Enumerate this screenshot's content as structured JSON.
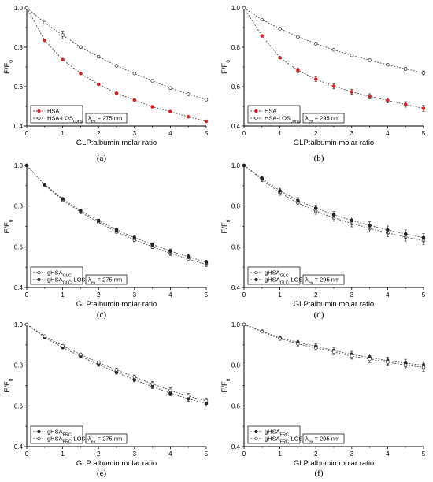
{
  "figure": {
    "x_axis_title": "GLP:albumin molar ratio",
    "y_axis_title_main": "F/F",
    "y_axis_title_sub": "0",
    "x_ticks": [
      0,
      1,
      2,
      3,
      4,
      5
    ]
  },
  "chart_data": [
    {
      "panel": "(a)",
      "type": "line",
      "xlim": [
        0,
        5
      ],
      "ylim": [
        0.4,
        1.0
      ],
      "y_ticks": [
        "0.4",
        "0.6",
        "0.8",
        "1.0"
      ],
      "y_tick_values": [
        0.4,
        0.6,
        0.8,
        1.0
      ],
      "legend_placement": "bottom-left",
      "lambda": {
        "main": "λ",
        "sub": "ex",
        "rest": " = 275 nm"
      },
      "series": [
        {
          "name": "HSA",
          "sub": "",
          "suffix": "",
          "sub2": "",
          "marker": "filled",
          "color": "#d62020",
          "x": [
            0,
            0.5,
            1,
            1.5,
            2,
            2.5,
            3,
            3.5,
            4,
            4.5,
            5
          ],
          "y": [
            1.0,
            0.835,
            0.737,
            0.667,
            0.612,
            0.567,
            0.532,
            0.498,
            0.473,
            0.447,
            0.424
          ],
          "err": [
            0,
            0.003,
            0.003,
            0.003,
            0.003,
            0.003,
            0.003,
            0.003,
            0.003,
            0.003,
            0.003
          ]
        },
        {
          "name": "HSA-LOS",
          "sub": "",
          "suffix": "",
          "sub2": "const",
          "marker": "open",
          "color": "#555555",
          "x": [
            0,
            0.5,
            1,
            1.5,
            2,
            2.5,
            3,
            3.5,
            4,
            4.5,
            5
          ],
          "y": [
            1.0,
            0.925,
            0.862,
            0.801,
            0.752,
            0.706,
            0.667,
            0.63,
            0.593,
            0.562,
            0.534
          ],
          "err": [
            0,
            0.005,
            0.02,
            0.006,
            0.005,
            0.005,
            0.005,
            0.005,
            0.005,
            0.005,
            0.005
          ]
        }
      ]
    },
    {
      "panel": "(b)",
      "type": "line",
      "xlim": [
        0,
        5
      ],
      "ylim": [
        0.4,
        1.0
      ],
      "y_ticks": [
        "0.4",
        "0.6",
        "0.8",
        "1.0"
      ],
      "y_tick_values": [
        0.4,
        0.6,
        0.8,
        1.0
      ],
      "legend_placement": "bottom-left",
      "lambda": {
        "main": "λ",
        "sub": "ex",
        "rest": " = 295 nm"
      },
      "series": [
        {
          "name": "HSA",
          "sub": "",
          "suffix": "",
          "sub2": "",
          "marker": "filled",
          "color": "#d62020",
          "x": [
            0,
            0.5,
            1,
            1.5,
            2,
            2.5,
            3,
            3.5,
            4,
            4.5,
            5
          ],
          "y": [
            1.0,
            0.858,
            0.747,
            0.683,
            0.638,
            0.602,
            0.574,
            0.551,
            0.53,
            0.51,
            0.49
          ],
          "err": [
            0,
            0.005,
            0.005,
            0.012,
            0.012,
            0.013,
            0.013,
            0.013,
            0.013,
            0.014,
            0.015
          ]
        },
        {
          "name": "HSA-LOS",
          "sub": "",
          "suffix": "",
          "sub2": "const",
          "marker": "open",
          "color": "#555555",
          "x": [
            0,
            0.5,
            1,
            1.5,
            2,
            2.5,
            3,
            3.5,
            4,
            4.5,
            5
          ],
          "y": [
            1.0,
            0.94,
            0.894,
            0.853,
            0.818,
            0.787,
            0.759,
            0.734,
            0.711,
            0.69,
            0.67
          ],
          "err": [
            0,
            0.004,
            0.004,
            0.004,
            0.005,
            0.005,
            0.005,
            0.006,
            0.006,
            0.007,
            0.01
          ]
        }
      ]
    },
    {
      "panel": "(c)",
      "type": "line",
      "xlim": [
        0,
        5
      ],
      "ylim": [
        0.4,
        1.0
      ],
      "y_ticks": [
        "0.4",
        "0.6",
        "0.8",
        "1.0"
      ],
      "y_tick_values": [
        0.4,
        0.6,
        0.8,
        1.0
      ],
      "legend_placement": "bottom-left",
      "lambda": {
        "main": "λ",
        "sub": "ex",
        "rest": " = 275 nm"
      },
      "series": [
        {
          "name": "gHSA",
          "sub": "GLC",
          "suffix": "",
          "sub2": "",
          "marker": "open",
          "color": "#555555",
          "x": [
            0,
            0.5,
            1,
            1.5,
            2,
            2.5,
            3,
            3.5,
            4,
            4.5,
            5
          ],
          "y": [
            1.0,
            0.903,
            0.83,
            0.77,
            0.72,
            0.674,
            0.634,
            0.6,
            0.568,
            0.54,
            0.513
          ],
          "err": [
            0,
            0.005,
            0.006,
            0.007,
            0.008,
            0.008,
            0.009,
            0.009,
            0.01,
            0.01,
            0.01
          ]
        },
        {
          "name": "gHSA",
          "sub": "GLC",
          "suffix": "-LOS",
          "sub2": "const",
          "marker": "filled",
          "color": "#222222",
          "x": [
            0,
            0.5,
            1,
            1.5,
            2,
            2.5,
            3,
            3.5,
            4,
            4.5,
            5
          ],
          "y": [
            1.0,
            0.906,
            0.835,
            0.777,
            0.728,
            0.684,
            0.645,
            0.611,
            0.579,
            0.551,
            0.524
          ],
          "err": [
            0,
            0.005,
            0.006,
            0.007,
            0.008,
            0.008,
            0.009,
            0.009,
            0.01,
            0.01,
            0.01
          ]
        }
      ]
    },
    {
      "panel": "(d)",
      "type": "line",
      "xlim": [
        0,
        5
      ],
      "ylim": [
        0.4,
        1.0
      ],
      "y_ticks": [
        "0.4",
        "0.6",
        "0.8",
        "1.0"
      ],
      "y_tick_values": [
        0.4,
        0.6,
        0.8,
        1.0
      ],
      "legend_placement": "bottom-left",
      "lambda": {
        "main": "λ",
        "sub": "ex",
        "rest": " = 295 nm"
      },
      "series": [
        {
          "name": "gHSA",
          "sub": "GLC",
          "suffix": "",
          "sub2": "",
          "marker": "open",
          "color": "#555555",
          "x": [
            0,
            0.5,
            1,
            1.5,
            2,
            2.5,
            3,
            3.5,
            4,
            4.5,
            5
          ],
          "y": [
            1.0,
            0.93,
            0.865,
            0.815,
            0.775,
            0.742,
            0.715,
            0.69,
            0.668,
            0.648,
            0.63
          ],
          "err": [
            0,
            0.01,
            0.012,
            0.014,
            0.015,
            0.016,
            0.017,
            0.018,
            0.019,
            0.02,
            0.02
          ]
        },
        {
          "name": "gHSA",
          "sub": "GLC",
          "suffix": "-LOS",
          "sub2": "const",
          "marker": "filled",
          "color": "#222222",
          "x": [
            0,
            0.5,
            1,
            1.5,
            2,
            2.5,
            3,
            3.5,
            4,
            4.5,
            5
          ],
          "y": [
            1.0,
            0.937,
            0.875,
            0.828,
            0.79,
            0.757,
            0.73,
            0.705,
            0.683,
            0.663,
            0.645
          ],
          "err": [
            0,
            0.01,
            0.012,
            0.014,
            0.015,
            0.016,
            0.017,
            0.018,
            0.019,
            0.02,
            0.02
          ]
        }
      ]
    },
    {
      "panel": "(e)",
      "type": "line",
      "xlim": [
        0,
        5
      ],
      "ylim": [
        0.4,
        1.0
      ],
      "y_ticks": [
        "0.4",
        "0.6",
        "0.8",
        "1.0"
      ],
      "y_tick_values": [
        0.4,
        0.6,
        0.8,
        1.0
      ],
      "legend_placement": "bottom-left",
      "lambda": {
        "main": "λ",
        "sub": "ex",
        "rest": " = 275 nm"
      },
      "series": [
        {
          "name": "gHSA",
          "sub": "FRC",
          "suffix": "",
          "sub2": "",
          "marker": "filled",
          "color": "#222222",
          "x": [
            0,
            0.5,
            1,
            1.5,
            2,
            2.5,
            3,
            3.5,
            4,
            4.5,
            5
          ],
          "y": [
            1.0,
            0.937,
            0.887,
            0.843,
            0.803,
            0.765,
            0.728,
            0.695,
            0.662,
            0.635,
            0.612
          ],
          "err": [
            0,
            0.005,
            0.006,
            0.007,
            0.008,
            0.009,
            0.01,
            0.011,
            0.012,
            0.013,
            0.014
          ]
        },
        {
          "name": "gHSA",
          "sub": "FRC",
          "suffix": "-LOS",
          "sub2": "const",
          "marker": "open",
          "color": "#555555",
          "x": [
            0,
            0.5,
            1,
            1.5,
            2,
            2.5,
            3,
            3.5,
            4,
            4.5,
            5
          ],
          "y": [
            1.0,
            0.943,
            0.895,
            0.853,
            0.813,
            0.777,
            0.742,
            0.708,
            0.676,
            0.648,
            0.625
          ],
          "err": [
            0,
            0.005,
            0.006,
            0.007,
            0.008,
            0.009,
            0.01,
            0.011,
            0.012,
            0.013,
            0.014
          ]
        }
      ]
    },
    {
      "panel": "(f)",
      "type": "line",
      "xlim": [
        0,
        5
      ],
      "ylim": [
        0.4,
        1.0
      ],
      "y_ticks": [
        "0.4",
        "0.6",
        "0.8",
        "1.0"
      ],
      "y_tick_values": [
        0.4,
        0.6,
        0.8,
        1.0
      ],
      "legend_placement": "bottom-left",
      "lambda": {
        "main": "λ",
        "sub": "ex",
        "rest": " = 295 nm"
      },
      "series": [
        {
          "name": "gHSA",
          "sub": "FRC",
          "suffix": "",
          "sub2": "",
          "marker": "filled",
          "color": "#222222",
          "x": [
            0,
            0.5,
            1,
            1.5,
            2,
            2.5,
            3,
            3.5,
            4,
            4.5,
            5
          ],
          "y": [
            1.0,
            0.967,
            0.935,
            0.912,
            0.893,
            0.872,
            0.853,
            0.838,
            0.822,
            0.81,
            0.8
          ],
          "err": [
            0,
            0.006,
            0.008,
            0.01,
            0.012,
            0.013,
            0.015,
            0.017,
            0.018,
            0.019,
            0.02
          ]
        },
        {
          "name": "gHSA",
          "sub": "FRC",
          "suffix": "-LOS",
          "sub2": "const",
          "marker": "open",
          "color": "#555555",
          "x": [
            0,
            0.5,
            1,
            1.5,
            2,
            2.5,
            3,
            3.5,
            4,
            4.5,
            5
          ],
          "y": [
            1.0,
            0.965,
            0.93,
            0.905,
            0.885,
            0.865,
            0.845,
            0.83,
            0.815,
            0.8,
            0.79
          ],
          "err": [
            0,
            0.006,
            0.008,
            0.01,
            0.012,
            0.013,
            0.015,
            0.017,
            0.018,
            0.019,
            0.02
          ]
        }
      ]
    }
  ]
}
